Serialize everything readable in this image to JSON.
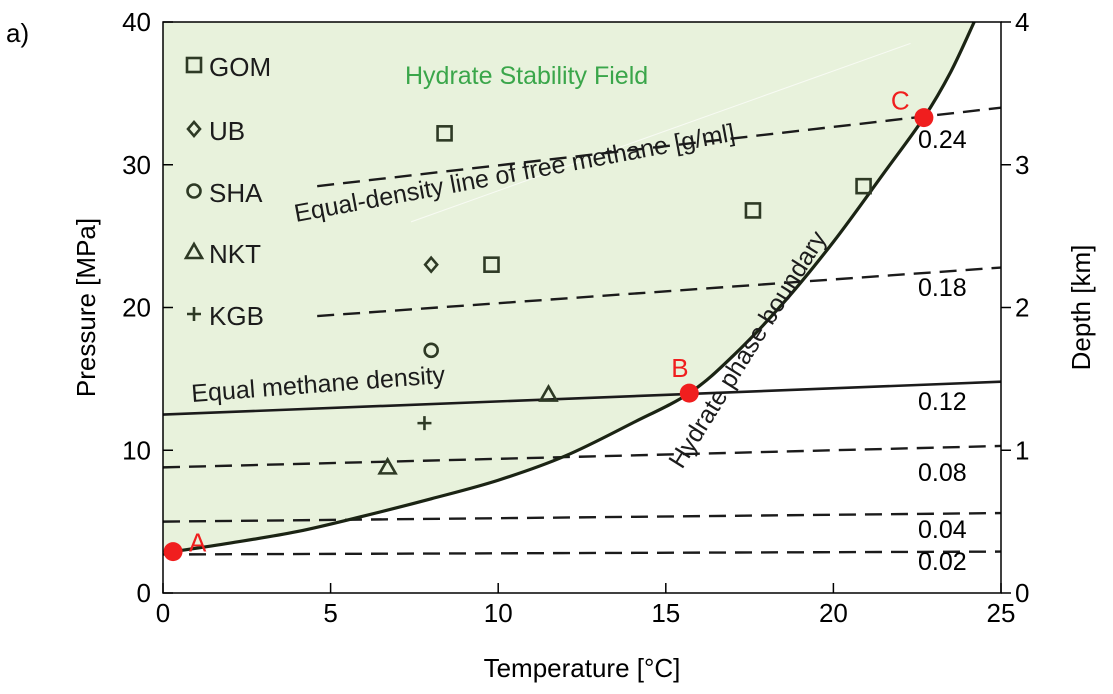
{
  "panel_label": "a)",
  "chart_data": {
    "type": "line",
    "xlabel": "Temperature [°C]",
    "ylabel": "Pressure [MPa]",
    "y2label": "Depth [km]",
    "xlim": [
      0,
      25
    ],
    "ylim": [
      0,
      40
    ],
    "y2lim": [
      0,
      4
    ],
    "xticks": [
      0,
      5,
      10,
      15,
      20,
      25
    ],
    "yticks": [
      0,
      10,
      20,
      30,
      40
    ],
    "y2ticks": [
      0,
      1,
      2,
      3,
      4
    ],
    "grid": false,
    "colors": {
      "field_fill": "#e8f2dc",
      "field_text": "#3aa64a",
      "curve": "#1b2414",
      "marker": "#2e3a25",
      "point": "#f01e1e"
    },
    "stability_field_label": "Hydrate Stability Field",
    "phase_boundary": {
      "label": "Hydrate phase boundary",
      "x": [
        0.3,
        2,
        4,
        6,
        8,
        10,
        12,
        14,
        15.7,
        17,
        18.5,
        20,
        21.5,
        22.7,
        23.5,
        24.2
      ],
      "y": [
        2.9,
        3.5,
        4.3,
        5.4,
        6.6,
        7.9,
        9.6,
        11.9,
        14.0,
        16.6,
        20.3,
        24.6,
        29.4,
        33.3,
        36.5,
        40.0
      ]
    },
    "equal_methane_density": {
      "label": "Equal methane density",
      "x": [
        0,
        25
      ],
      "y": [
        12.5,
        14.8
      ]
    },
    "equal_density_lines": {
      "label": "Equal-density line of free methane [g/ml]",
      "lines": [
        {
          "label": "0.24",
          "x": [
            4.6,
            25
          ],
          "y": [
            28.5,
            34.0
          ]
        },
        {
          "label": "0.18",
          "x": [
            4.6,
            25
          ],
          "y": [
            19.4,
            22.8
          ]
        },
        {
          "label": "0.12",
          "x": [
            0,
            25
          ],
          "y": [
            12.5,
            14.8
          ]
        },
        {
          "label": "0.08",
          "x": [
            0,
            25
          ],
          "y": [
            8.8,
            10.3
          ]
        },
        {
          "label": "0.04",
          "x": [
            0,
            25
          ],
          "y": [
            5.0,
            5.6
          ]
        },
        {
          "label": "0.02",
          "x": [
            0,
            25
          ],
          "y": [
            2.7,
            2.9
          ]
        }
      ]
    },
    "series": [
      {
        "name": "GOM",
        "marker": "square",
        "x": [
          8.4,
          9.8,
          17.6,
          20.9
        ],
        "y": [
          32.2,
          23.0,
          26.8,
          28.5
        ]
      },
      {
        "name": "UB",
        "marker": "diamond",
        "x": [
          8.0
        ],
        "y": [
          23.0
        ]
      },
      {
        "name": "SHA",
        "marker": "circle",
        "x": [
          8.0
        ],
        "y": [
          17.0
        ]
      },
      {
        "name": "NKT",
        "marker": "triangle",
        "x": [
          6.7,
          11.5
        ],
        "y": [
          8.8,
          13.9
        ]
      },
      {
        "name": "KGB",
        "marker": "plus",
        "x": [
          7.8
        ],
        "y": [
          11.9
        ]
      }
    ],
    "key_points": [
      {
        "label": "A",
        "x": 0.3,
        "y": 2.9
      },
      {
        "label": "B",
        "x": 15.7,
        "y": 14.0
      },
      {
        "label": "C",
        "x": 22.7,
        "y": 33.3
      }
    ],
    "legend_position": "top-left"
  }
}
